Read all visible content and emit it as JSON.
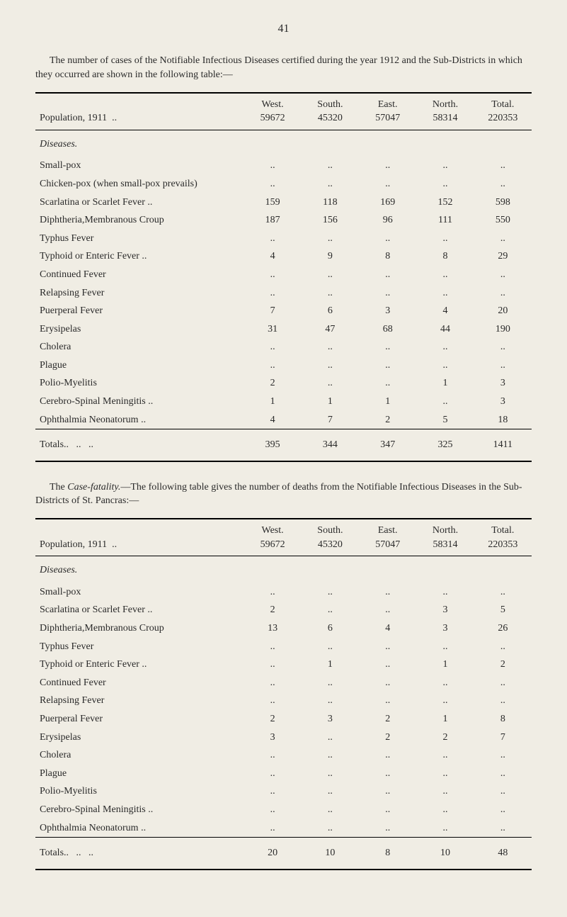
{
  "page_number": "41",
  "intro_text": "The number of cases of the Notifiable Infectious Diseases certified during the year 1912 and the Sub-Districts in which they occurred are shown in the following table:—",
  "table1": {
    "header_row1": {
      "label": "Population, 1911",
      "c1": "West.",
      "c2": "South.",
      "c3": "East.",
      "c4": "North.",
      "c5": "Total."
    },
    "header_row2": {
      "c1": "59672",
      "c2": "45320",
      "c3": "57047",
      "c4": "58314",
      "c5": "220353"
    },
    "section_heading": "Diseases.",
    "rows": [
      {
        "label": "Small-pox",
        "c1": "..",
        "c2": "..",
        "c3": "..",
        "c4": "..",
        "c5": ".."
      },
      {
        "label": "Chicken-pox (when small-pox prevails)",
        "c1": "..",
        "c2": "..",
        "c3": "..",
        "c4": "..",
        "c5": ".."
      },
      {
        "label": "Scarlatina or Scarlet Fever ..",
        "c1": "159",
        "c2": "118",
        "c3": "169",
        "c4": "152",
        "c5": "598"
      },
      {
        "label": "Diphtheria,Membranous Croup",
        "c1": "187",
        "c2": "156",
        "c3": "96",
        "c4": "111",
        "c5": "550"
      },
      {
        "label": "Typhus Fever",
        "c1": "..",
        "c2": "..",
        "c3": "..",
        "c4": "..",
        "c5": ".."
      },
      {
        "label": "Typhoid or Enteric Fever ..",
        "c1": "4",
        "c2": "9",
        "c3": "8",
        "c4": "8",
        "c5": "29"
      },
      {
        "label": "Continued Fever",
        "c1": "..",
        "c2": "..",
        "c3": "..",
        "c4": "..",
        "c5": ".."
      },
      {
        "label": "Relapsing Fever",
        "c1": "..",
        "c2": "..",
        "c3": "..",
        "c4": "..",
        "c5": ".."
      },
      {
        "label": "Puerperal Fever",
        "c1": "7",
        "c2": "6",
        "c3": "3",
        "c4": "4",
        "c5": "20"
      },
      {
        "label": "Erysipelas",
        "c1": "31",
        "c2": "47",
        "c3": "68",
        "c4": "44",
        "c5": "190"
      },
      {
        "label": "Cholera",
        "c1": "..",
        "c2": "..",
        "c3": "..",
        "c4": "..",
        "c5": ".."
      },
      {
        "label": "Plague",
        "c1": "..",
        "c2": "..",
        "c3": "..",
        "c4": "..",
        "c5": ".."
      },
      {
        "label": "Polio-Myelitis",
        "c1": "2",
        "c2": "..",
        "c3": "..",
        "c4": "1",
        "c5": "3"
      },
      {
        "label": "Cerebro-Spinal Meningitis ..",
        "c1": "1",
        "c2": "1",
        "c3": "1",
        "c4": "..",
        "c5": "3"
      },
      {
        "label": "Ophthalmia Neonatorum  ..",
        "c1": "4",
        "c2": "7",
        "c3": "2",
        "c4": "5",
        "c5": "18"
      }
    ],
    "totals": {
      "label": "Totals..",
      "c1": "395",
      "c2": "344",
      "c3": "347",
      "c4": "325",
      "c5": "1411"
    }
  },
  "mid_text_prefix": "The ",
  "mid_text_italic": "Case-fatality.",
  "mid_text_rest": "––The following table gives the number of deaths from the Notifiable Infectious Diseases in the Sub-Districts of St. Pancras:—",
  "table2": {
    "header_row1": {
      "label": "Population, 1911",
      "c1": "West.",
      "c2": "South.",
      "c3": "East.",
      "c4": "North.",
      "c5": "Total."
    },
    "header_row2": {
      "c1": "59672",
      "c2": "45320",
      "c3": "57047",
      "c4": "58314",
      "c5": "220353"
    },
    "section_heading": "Diseases.",
    "rows": [
      {
        "label": "Small-pox",
        "c1": "..",
        "c2": "..",
        "c3": "..",
        "c4": "..",
        "c5": ".."
      },
      {
        "label": "Scarlatina or Scarlet Fever ..",
        "c1": "2",
        "c2": "..",
        "c3": "..",
        "c4": "3",
        "c5": "5"
      },
      {
        "label": "Diphtheria,Membranous Croup",
        "c1": "13",
        "c2": "6",
        "c3": "4",
        "c4": "3",
        "c5": "26"
      },
      {
        "label": "Typhus Fever",
        "c1": "..",
        "c2": "..",
        "c3": "..",
        "c4": "..",
        "c5": ".."
      },
      {
        "label": "Typhoid or Enteric Fever ..",
        "c1": "..",
        "c2": "1",
        "c3": "..",
        "c4": "1",
        "c5": "2"
      },
      {
        "label": "Continued Fever",
        "c1": "..",
        "c2": "..",
        "c3": "..",
        "c4": "..",
        "c5": ".."
      },
      {
        "label": "Relapsing Fever",
        "c1": "..",
        "c2": "..",
        "c3": "..",
        "c4": "..",
        "c5": ".."
      },
      {
        "label": "Puerperal Fever",
        "c1": "2",
        "c2": "3",
        "c3": "2",
        "c4": "1",
        "c5": "8"
      },
      {
        "label": "Erysipelas",
        "c1": "3",
        "c2": "..",
        "c3": "2",
        "c4": "2",
        "c5": "7"
      },
      {
        "label": "Cholera",
        "c1": "..",
        "c2": "..",
        "c3": "..",
        "c4": "..",
        "c5": ".."
      },
      {
        "label": "Plague",
        "c1": "..",
        "c2": "..",
        "c3": "..",
        "c4": "..",
        "c5": ".."
      },
      {
        "label": "Polio-Myelitis",
        "c1": "..",
        "c2": "..",
        "c3": "..",
        "c4": "..",
        "c5": ".."
      },
      {
        "label": "Cerebro-Spinal Meningitis ..",
        "c1": "..",
        "c2": "..",
        "c3": "..",
        "c4": "..",
        "c5": ".."
      },
      {
        "label": "Ophthalmia Neonatorum  ..",
        "c1": "..",
        "c2": "..",
        "c3": "..",
        "c4": "..",
        "c5": ".."
      }
    ],
    "totals": {
      "label": "Totals..",
      "c1": "20",
      "c2": "10",
      "c3": "8",
      "c4": "10",
      "c5": "48"
    }
  }
}
